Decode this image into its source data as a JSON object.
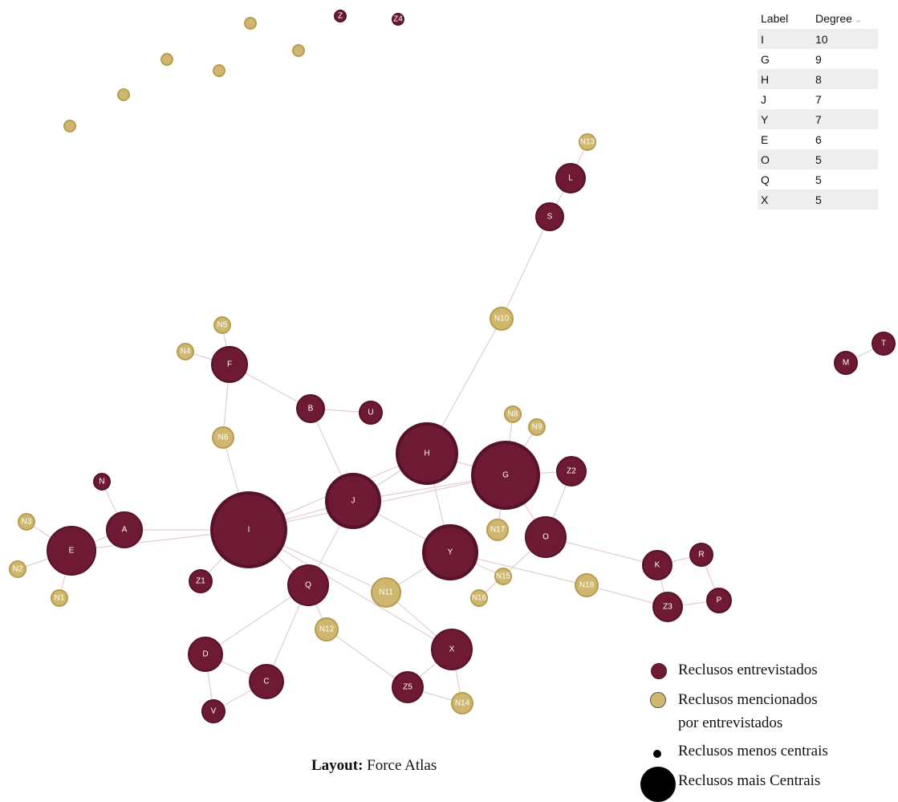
{
  "colors": {
    "interviewed": "#6e1a33",
    "interviewed_stroke": "#55122a",
    "mentioned": "#cfb76f",
    "mentioned_stroke": "#b79c4e",
    "edge": "#e3cdd2"
  },
  "graph": {
    "nodes": [
      {
        "id": "I",
        "label": "I",
        "group": "interviewed",
        "degree": 10
      },
      {
        "id": "G",
        "label": "G",
        "group": "interviewed",
        "degree": 9
      },
      {
        "id": "H",
        "label": "H",
        "group": "interviewed",
        "degree": 8
      },
      {
        "id": "J",
        "label": "J",
        "group": "interviewed",
        "degree": 7
      },
      {
        "id": "Y",
        "label": "Y",
        "group": "interviewed",
        "degree": 7
      },
      {
        "id": "E",
        "label": "E",
        "group": "interviewed",
        "degree": 6
      },
      {
        "id": "O",
        "label": "O",
        "group": "interviewed",
        "degree": 5
      },
      {
        "id": "Q",
        "label": "Q",
        "group": "interviewed",
        "degree": 5
      },
      {
        "id": "X",
        "label": "X",
        "group": "interviewed",
        "degree": 5
      },
      {
        "id": "A",
        "label": "A",
        "group": "interviewed",
        "degree": 3
      },
      {
        "id": "C",
        "label": "C",
        "group": "interviewed",
        "degree": 3
      },
      {
        "id": "D",
        "label": "D",
        "group": "interviewed",
        "degree": 3
      },
      {
        "id": "K",
        "label": "K",
        "group": "interviewed",
        "degree": 3
      },
      {
        "id": "Z3",
        "label": "Z3",
        "group": "interviewed",
        "degree": 3
      },
      {
        "id": "Z5",
        "label": "Z5",
        "group": "interviewed",
        "degree": 3
      },
      {
        "id": "F",
        "label": "F",
        "group": "interviewed",
        "degree": 3
      },
      {
        "id": "B",
        "label": "B",
        "group": "interviewed",
        "degree": 3
      },
      {
        "id": "L",
        "label": "L",
        "group": "interviewed",
        "degree": 2
      },
      {
        "id": "S",
        "label": "S",
        "group": "interviewed",
        "degree": 2
      },
      {
        "id": "Z2",
        "label": "Z2",
        "group": "interviewed",
        "degree": 2
      },
      {
        "id": "R",
        "label": "R",
        "group": "interviewed",
        "degree": 2
      },
      {
        "id": "P",
        "label": "P",
        "group": "interviewed",
        "degree": 2
      },
      {
        "id": "U",
        "label": "U",
        "group": "interviewed",
        "degree": 1
      },
      {
        "id": "V",
        "label": "V",
        "group": "interviewed",
        "degree": 2
      },
      {
        "id": "Z1",
        "label": "Z1",
        "group": "interviewed",
        "degree": 1
      },
      {
        "id": "N",
        "label": "N",
        "group": "interviewed",
        "degree": 1
      },
      {
        "id": "M",
        "label": "M",
        "group": "interviewed",
        "degree": 1
      },
      {
        "id": "T",
        "label": "T",
        "group": "interviewed",
        "degree": 1
      },
      {
        "id": "Z",
        "label": "Z",
        "group": "interviewed",
        "degree": 0
      },
      {
        "id": "Z4",
        "label": "Z4",
        "group": "interviewed",
        "degree": 0
      },
      {
        "id": "N1",
        "label": "N1",
        "group": "mentioned",
        "degree": 1
      },
      {
        "id": "N2",
        "label": "N2",
        "group": "mentioned",
        "degree": 1
      },
      {
        "id": "N3",
        "label": "N3",
        "group": "mentioned",
        "degree": 1
      },
      {
        "id": "N4",
        "label": "N4",
        "group": "mentioned",
        "degree": 1
      },
      {
        "id": "N5",
        "label": "N5",
        "group": "mentioned",
        "degree": 1
      },
      {
        "id": "N6",
        "label": "N6",
        "group": "mentioned",
        "degree": 2
      },
      {
        "id": "N8",
        "label": "N8",
        "group": "mentioned",
        "degree": 1
      },
      {
        "id": "N9",
        "label": "N9",
        "group": "mentioned",
        "degree": 1
      },
      {
        "id": "N10",
        "label": "N10",
        "group": "mentioned",
        "degree": 2
      },
      {
        "id": "N11",
        "label": "N11",
        "group": "mentioned",
        "degree": 3
      },
      {
        "id": "N12",
        "label": "N12",
        "group": "mentioned",
        "degree": 2
      },
      {
        "id": "N13",
        "label": "N13",
        "group": "mentioned",
        "degree": 1
      },
      {
        "id": "N14",
        "label": "N14",
        "group": "mentioned",
        "degree": 1
      },
      {
        "id": "N15",
        "label": "N15",
        "group": "mentioned",
        "degree": 1
      },
      {
        "id": "N16",
        "label": "N16",
        "group": "mentioned",
        "degree": 1
      },
      {
        "id": "N17",
        "label": "N17",
        "group": "mentioned",
        "degree": 1
      },
      {
        "id": "N18",
        "label": "N18",
        "group": "mentioned",
        "degree": 2
      },
      {
        "id": "i1",
        "label": "",
        "group": "mentioned",
        "degree": 0
      },
      {
        "id": "i2",
        "label": "",
        "group": "mentioned",
        "degree": 0
      },
      {
        "id": "i3",
        "label": "",
        "group": "mentioned",
        "degree": 0
      },
      {
        "id": "i4",
        "label": "",
        "group": "mentioned",
        "degree": 0
      },
      {
        "id": "i5",
        "label": "",
        "group": "mentioned",
        "degree": 0
      },
      {
        "id": "i6",
        "label": "",
        "group": "mentioned",
        "degree": 0
      }
    ],
    "edges": [
      [
        "I",
        "E"
      ],
      [
        "I",
        "A"
      ],
      [
        "I",
        "J"
      ],
      [
        "I",
        "Q"
      ],
      [
        "I",
        "Z1"
      ],
      [
        "I",
        "N6"
      ],
      [
        "I",
        "G"
      ],
      [
        "I",
        "H"
      ],
      [
        "I",
        "N11"
      ],
      [
        "I",
        "X"
      ],
      [
        "E",
        "A"
      ],
      [
        "E",
        "N1"
      ],
      [
        "E",
        "N2"
      ],
      [
        "E",
        "N3"
      ],
      [
        "A",
        "N"
      ],
      [
        "F",
        "N4"
      ],
      [
        "F",
        "N5"
      ],
      [
        "F",
        "N6"
      ],
      [
        "F",
        "B"
      ],
      [
        "B",
        "U"
      ],
      [
        "B",
        "J"
      ],
      [
        "J",
        "H"
      ],
      [
        "J",
        "G"
      ],
      [
        "J",
        "Y"
      ],
      [
        "J",
        "Q"
      ],
      [
        "H",
        "N10"
      ],
      [
        "H",
        "Y"
      ],
      [
        "H",
        "G"
      ],
      [
        "N10",
        "S"
      ],
      [
        "S",
        "L"
      ],
      [
        "L",
        "N13"
      ],
      [
        "G",
        "N8"
      ],
      [
        "G",
        "N9"
      ],
      [
        "G",
        "Z2"
      ],
      [
        "G",
        "O"
      ],
      [
        "G",
        "N17"
      ],
      [
        "Z2",
        "O"
      ],
      [
        "O",
        "K"
      ],
      [
        "O",
        "N16"
      ],
      [
        "Y",
        "N11"
      ],
      [
        "Y",
        "N15"
      ],
      [
        "Y",
        "N18"
      ],
      [
        "N18",
        "Z3"
      ],
      [
        "K",
        "Z3"
      ],
      [
        "K",
        "R"
      ],
      [
        "R",
        "P"
      ],
      [
        "Z3",
        "P"
      ],
      [
        "Q",
        "N12"
      ],
      [
        "Q",
        "D"
      ],
      [
        "Q",
        "C"
      ],
      [
        "N12",
        "Z5"
      ],
      [
        "N11",
        "X"
      ],
      [
        "X",
        "Z5"
      ],
      [
        "X",
        "N14"
      ],
      [
        "Z5",
        "N14"
      ],
      [
        "D",
        "C"
      ],
      [
        "D",
        "V"
      ],
      [
        "C",
        "V"
      ],
      [
        "M",
        "T"
      ]
    ]
  },
  "degree_table": {
    "col_label": "Label",
    "col_degree": "Degree",
    "rows": [
      {
        "label": "I",
        "degree": "10"
      },
      {
        "label": "G",
        "degree": "9"
      },
      {
        "label": "H",
        "degree": "8"
      },
      {
        "label": "J",
        "degree": "7"
      },
      {
        "label": "Y",
        "degree": "7"
      },
      {
        "label": "E",
        "degree": "6"
      },
      {
        "label": "O",
        "degree": "5"
      },
      {
        "label": "Q",
        "degree": "5"
      },
      {
        "label": "X",
        "degree": "5"
      }
    ]
  },
  "legend": {
    "interviewed": "Reclusos entrevistados",
    "mentioned_line1": "Reclusos mencionados",
    "mentioned_line2": "por entrevistados",
    "less_central": "Reclusos menos centrais",
    "more_central": "Reclusos mais Centrais"
  },
  "caption": {
    "bold": "Layout:",
    "text": " Force Atlas"
  }
}
